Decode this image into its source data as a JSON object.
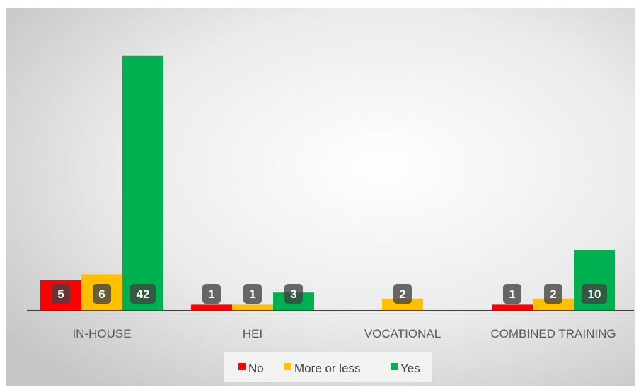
{
  "chart_data": {
    "type": "bar",
    "categories": [
      "IN-HOUSE",
      "HEI",
      "VOCATIONAL",
      "COMBINED TRAINING"
    ],
    "series": [
      {
        "name": "No",
        "color": "#ff0000",
        "values": [
          5,
          1,
          0,
          1
        ]
      },
      {
        "name": "More or less",
        "color": "#ffc000",
        "values": [
          6,
          1,
          2,
          2
        ]
      },
      {
        "name": "Yes",
        "color": "#00b050",
        "values": [
          42,
          3,
          0,
          10
        ]
      }
    ],
    "data_labels": {
      "No": [
        "5",
        "1",
        null,
        "1"
      ],
      "More or less": [
        "6",
        "1",
        "2",
        "2"
      ],
      "Yes": [
        "42",
        "3",
        null,
        "10"
      ]
    },
    "title": "",
    "xlabel": "",
    "ylabel": "",
    "ylim": [
      0,
      45
    ],
    "grid": false,
    "legend_position": "bottom",
    "background": "radial-gradient-white-to-gray"
  }
}
